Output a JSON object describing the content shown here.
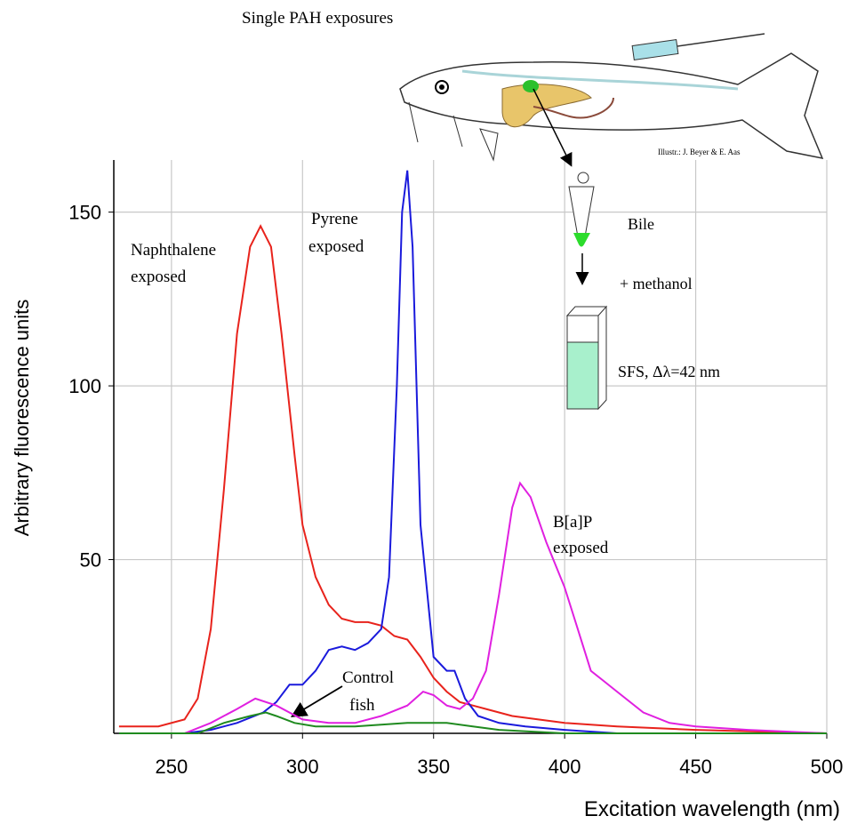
{
  "chart_data": {
    "type": "line",
    "xlabel": "Excitation wavelength (nm)",
    "ylabel": "Arbitrary fluorescence units",
    "xlim": [
      228,
      500
    ],
    "ylim": [
      0,
      165
    ],
    "xticks": [
      250,
      300,
      350,
      400,
      450,
      500
    ],
    "yticks": [
      50,
      100,
      150
    ],
    "grid": true,
    "series": [
      {
        "color": "#e8231c",
        "x": [
          230,
          245,
          255,
          260,
          265,
          270,
          275,
          280,
          284,
          288,
          292,
          297,
          300,
          305,
          310,
          315,
          320,
          325,
          330,
          335,
          340,
          345,
          350,
          355,
          360,
          365,
          370,
          380,
          400,
          420,
          450,
          500
        ],
        "values": [
          2,
          2,
          4,
          10,
          30,
          70,
          115,
          140,
          146,
          140,
          115,
          80,
          60,
          45,
          37,
          33,
          32,
          32,
          31,
          28,
          27,
          22,
          16,
          12,
          9,
          8,
          7,
          5,
          3,
          2,
          1,
          0
        ]
      },
      {
        "color": "#1a1adc",
        "x": [
          230,
          255,
          265,
          275,
          285,
          290,
          295,
          300,
          305,
          310,
          315,
          320,
          325,
          330,
          333,
          336,
          338,
          340,
          342,
          345,
          350,
          355,
          358,
          362,
          367,
          375,
          385,
          400,
          420,
          500
        ],
        "values": [
          0,
          0,
          1,
          3,
          6,
          9,
          14,
          14,
          18,
          24,
          25,
          24,
          26,
          30,
          45,
          100,
          150,
          162,
          140,
          60,
          22,
          18,
          18,
          10,
          5,
          3,
          2,
          1,
          0,
          0
        ]
      },
      {
        "color": "#e020e0",
        "x": [
          230,
          255,
          265,
          275,
          282,
          290,
          300,
          310,
          320,
          330,
          340,
          346,
          350,
          355,
          360,
          365,
          370,
          375,
          380,
          383,
          387,
          393,
          400,
          405,
          410,
          415,
          420,
          430,
          440,
          450,
          470,
          500
        ],
        "values": [
          0,
          0,
          3,
          7,
          10,
          8,
          4,
          3,
          3,
          5,
          8,
          12,
          11,
          8,
          7,
          10,
          18,
          40,
          65,
          72,
          68,
          55,
          42,
          30,
          18,
          15,
          12,
          6,
          3,
          2,
          1,
          0
        ]
      },
      {
        "color": "#1f8a1f",
        "x": [
          230,
          260,
          270,
          280,
          286,
          290,
          297,
          305,
          320,
          340,
          355,
          365,
          375,
          400,
          500
        ],
        "values": [
          0,
          0,
          3,
          5,
          6,
          5,
          3,
          2,
          2,
          3,
          3,
          2,
          1,
          0,
          0
        ]
      }
    ],
    "annotations": [
      [
        "Naphthalene",
        "exposed"
      ],
      [
        "Pyrene",
        "exposed"
      ],
      [
        "B[a]P",
        "exposed"
      ],
      [
        "Control",
        "fish"
      ]
    ],
    "illustration_labels": [
      "Single PAH exposures",
      "Illustr.: J. Beyer & E. Aas",
      "Bile",
      "+ methanol",
      "SFS, Δλ=42 nm"
    ]
  }
}
